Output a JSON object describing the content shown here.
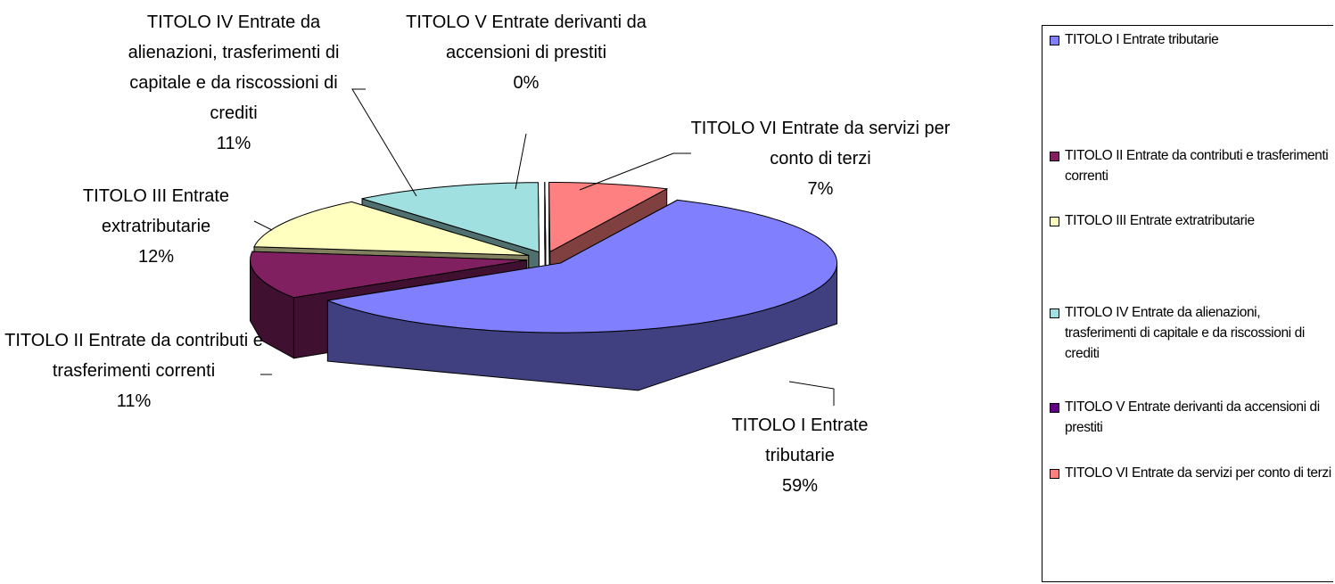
{
  "chart_data": {
    "type": "pie",
    "categories": [
      "TITOLO I Entrate tributarie",
      "TITOLO II Entrate da contributi e trasferimenti correnti",
      "TITOLO III Entrate extratributarie",
      "TITOLO IV Entrate da alienazioni, trasferimenti  di capitale e da riscossioni di crediti",
      "TITOLO V Entrate derivanti da accensioni di prestiti",
      "TITOLO VI Entrate da servizi per conto di terzi"
    ],
    "values": [
      59,
      11,
      12,
      11,
      0,
      7
    ],
    "value_labels": [
      "59%",
      "11%",
      "12%",
      "11%",
      "0%",
      "7%"
    ],
    "colors": [
      "#8080ff",
      "#802060",
      "#ffffc0",
      "#a0e0e0",
      "#600080",
      "#ff8080"
    ],
    "legend": "right"
  }
}
